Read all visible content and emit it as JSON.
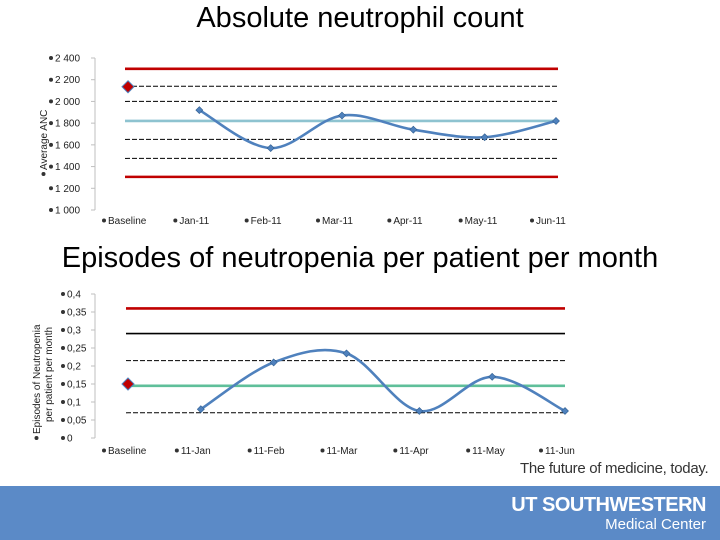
{
  "chart_data": [
    {
      "type": "line",
      "title": "Absolute neutrophil count",
      "ylabel": "Average ANC",
      "ylim": [
        1000,
        2400
      ],
      "yticks": [
        "2 400",
        "2 200",
        "2 000",
        "1 800",
        "1 600",
        "1 400",
        "1 200",
        "1 000"
      ],
      "ytick_values": [
        2400,
        2200,
        2000,
        1800,
        1600,
        1400,
        1200,
        1000
      ],
      "categories": [
        "Baseline",
        "Jan-11",
        "Feb-11",
        "Mar-11",
        "Apr-11",
        "May-11",
        "Jun-11"
      ],
      "series": [
        {
          "values": [
            2135,
            1920,
            1570,
            1870,
            1740,
            1670,
            1820
          ],
          "color": "#4f81bd"
        }
      ],
      "reference_lines": [
        {
          "y": 2300,
          "color": "#c00000",
          "style": "solid"
        },
        {
          "y": 2140,
          "color": "#000000",
          "style": "dashed"
        },
        {
          "y": 2000,
          "color": "#000000",
          "style": "dashed"
        },
        {
          "y": 1820,
          "color": "#8ec3d0",
          "style": "solid"
        },
        {
          "y": 1650,
          "color": "#000000",
          "style": "dashed"
        },
        {
          "y": 1475,
          "color": "#000000",
          "style": "dashed"
        },
        {
          "y": 1305,
          "color": "#c00000",
          "style": "solid"
        }
      ],
      "baseline_marker_color": "#c00000"
    },
    {
      "type": "line",
      "title": "Episodes of neutropenia per patient per month",
      "ylabel_lines": [
        "Episodes of Neutropenia",
        "per patient per month"
      ],
      "ylim": [
        0,
        0.4
      ],
      "yticks": [
        "0,4",
        "0,35",
        "0,3",
        "0,25",
        "0,2",
        "0,15",
        "0,1",
        "0,05",
        "0"
      ],
      "ytick_values": [
        0.4,
        0.35,
        0.3,
        0.25,
        0.2,
        0.15,
        0.1,
        0.05,
        0
      ],
      "categories": [
        "Baseline",
        "11-Jan",
        "11-Feb",
        "11-Mar",
        "11-Apr",
        "11-May",
        "11-Jun"
      ],
      "series": [
        {
          "values": [
            0.15,
            0.08,
            0.21,
            0.235,
            0.075,
            0.17,
            0.075
          ],
          "color": "#4f81bd"
        }
      ],
      "reference_lines": [
        {
          "y": 0.36,
          "color": "#c00000",
          "style": "solid"
        },
        {
          "y": 0.29,
          "color": "#000000",
          "style": "solid"
        },
        {
          "y": 0.215,
          "color": "#000000",
          "style": "dashed"
        },
        {
          "y": 0.145,
          "color": "#5fbf9a",
          "style": "solid"
        },
        {
          "y": 0.07,
          "color": "#000000",
          "style": "dashed"
        }
      ],
      "baseline_marker_color": "#c00000"
    }
  ],
  "footer": {
    "tagline": "The future of medicine, today.",
    "brand_line1": "UT SOUTHWESTERN",
    "brand_line2": "Medical Center"
  }
}
